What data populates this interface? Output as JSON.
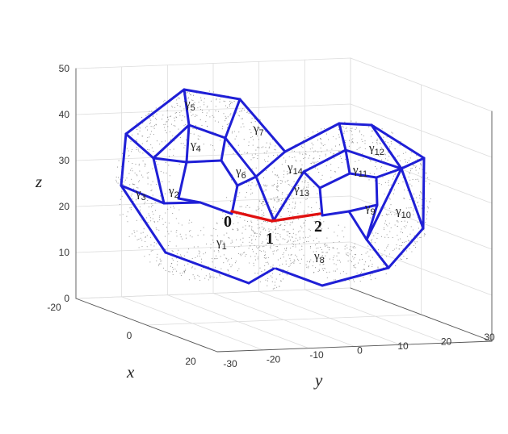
{
  "chart_data": {
    "type": "3d-graph-surface",
    "view": "3d",
    "axes": {
      "x": {
        "label": "x",
        "range": [
          -20,
          20
        ],
        "ticks": [
          "-20",
          "0",
          "20"
        ]
      },
      "y": {
        "label": "y",
        "range": [
          -30,
          30
        ],
        "ticks": [
          "-30",
          "-20",
          "-10",
          "0",
          "10",
          "20",
          "30"
        ]
      },
      "z": {
        "label": "z",
        "range": [
          0,
          50
        ],
        "ticks": [
          "0",
          "10",
          "20",
          "30",
          "40",
          "50"
        ]
      }
    },
    "grid": true,
    "nodes": [
      {
        "id": "0",
        "label": "0"
      },
      {
        "id": "1",
        "label": "1"
      },
      {
        "id": "2",
        "label": "2"
      }
    ],
    "highlighted_edges": [
      [
        "0",
        "1"
      ],
      [
        "1",
        "2"
      ]
    ],
    "cycles": [
      {
        "symbol": "γ",
        "index": "1"
      },
      {
        "symbol": "γ",
        "index": "2"
      },
      {
        "symbol": "γ",
        "index": "3"
      },
      {
        "symbol": "γ",
        "index": "4"
      },
      {
        "symbol": "γ",
        "index": "5"
      },
      {
        "symbol": "γ",
        "index": "6"
      },
      {
        "symbol": "γ",
        "index": "7"
      },
      {
        "symbol": "γ",
        "index": "8"
      },
      {
        "symbol": "γ",
        "index": "9"
      },
      {
        "symbol": "γ",
        "index": "10"
      },
      {
        "symbol": "γ",
        "index": "11"
      },
      {
        "symbol": "γ",
        "index": "12"
      },
      {
        "symbol": "γ",
        "index": "13"
      },
      {
        "symbol": "γ",
        "index": "14"
      }
    ],
    "colors": {
      "graph_edges": "#1f1fd6",
      "highlight_edges": "#e01010",
      "point_cloud": "#8a8a8a",
      "grid": "#dcdcdc",
      "axes": "#555555"
    }
  }
}
